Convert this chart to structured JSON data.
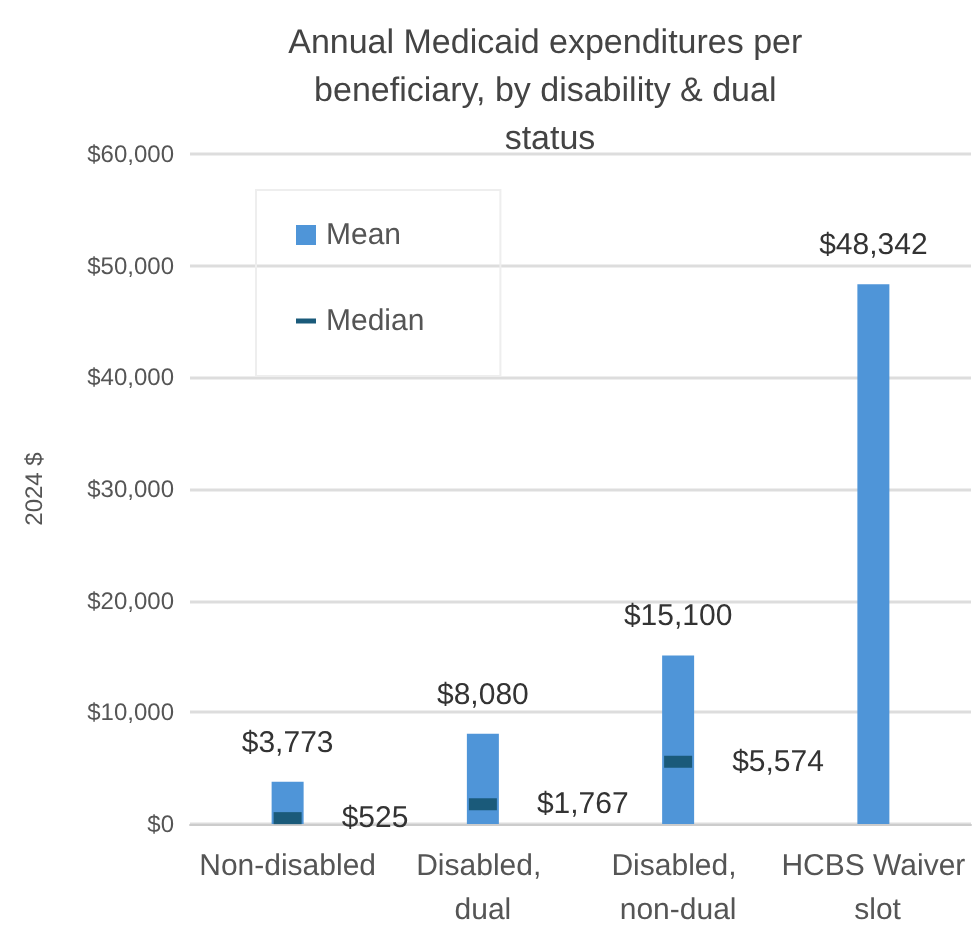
{
  "chart_data": {
    "type": "bar",
    "title": "Annual Medicaid expenditures per beneficiary, by disability & dual status",
    "ylabel": "2024 $",
    "categories": [
      "Non-disabled",
      "Disabled, dual",
      "Disabled, non-dual",
      "HCBS Waiver slot"
    ],
    "series": [
      {
        "name": "Mean",
        "type": "bar",
        "color": "#4f95d8",
        "values": [
          3773,
          8080,
          15100,
          48342
        ],
        "value_labels": [
          "$3,773",
          "$8,080",
          "$15,100",
          "$48,342"
        ]
      },
      {
        "name": "Median",
        "type": "scatter",
        "color": "#1a5a7a",
        "values": [
          525,
          1767,
          5574,
          null
        ],
        "value_labels": [
          "$525",
          "$1,767",
          "$5,574",
          null
        ]
      }
    ],
    "ylim": [
      0,
      60000
    ],
    "yticks": [
      {
        "value": 0,
        "label": "$0"
      },
      {
        "value": 10000,
        "label": "$10,000"
      },
      {
        "value": 20000,
        "label": "$20,000"
      },
      {
        "value": 30000,
        "label": "$30,000"
      },
      {
        "value": 40000,
        "label": "$40,000"
      },
      {
        "value": 50000,
        "label": "$50,000"
      },
      {
        "value": 60000,
        "label": "$60,000"
      }
    ],
    "grid": "y",
    "legend": "top left"
  }
}
